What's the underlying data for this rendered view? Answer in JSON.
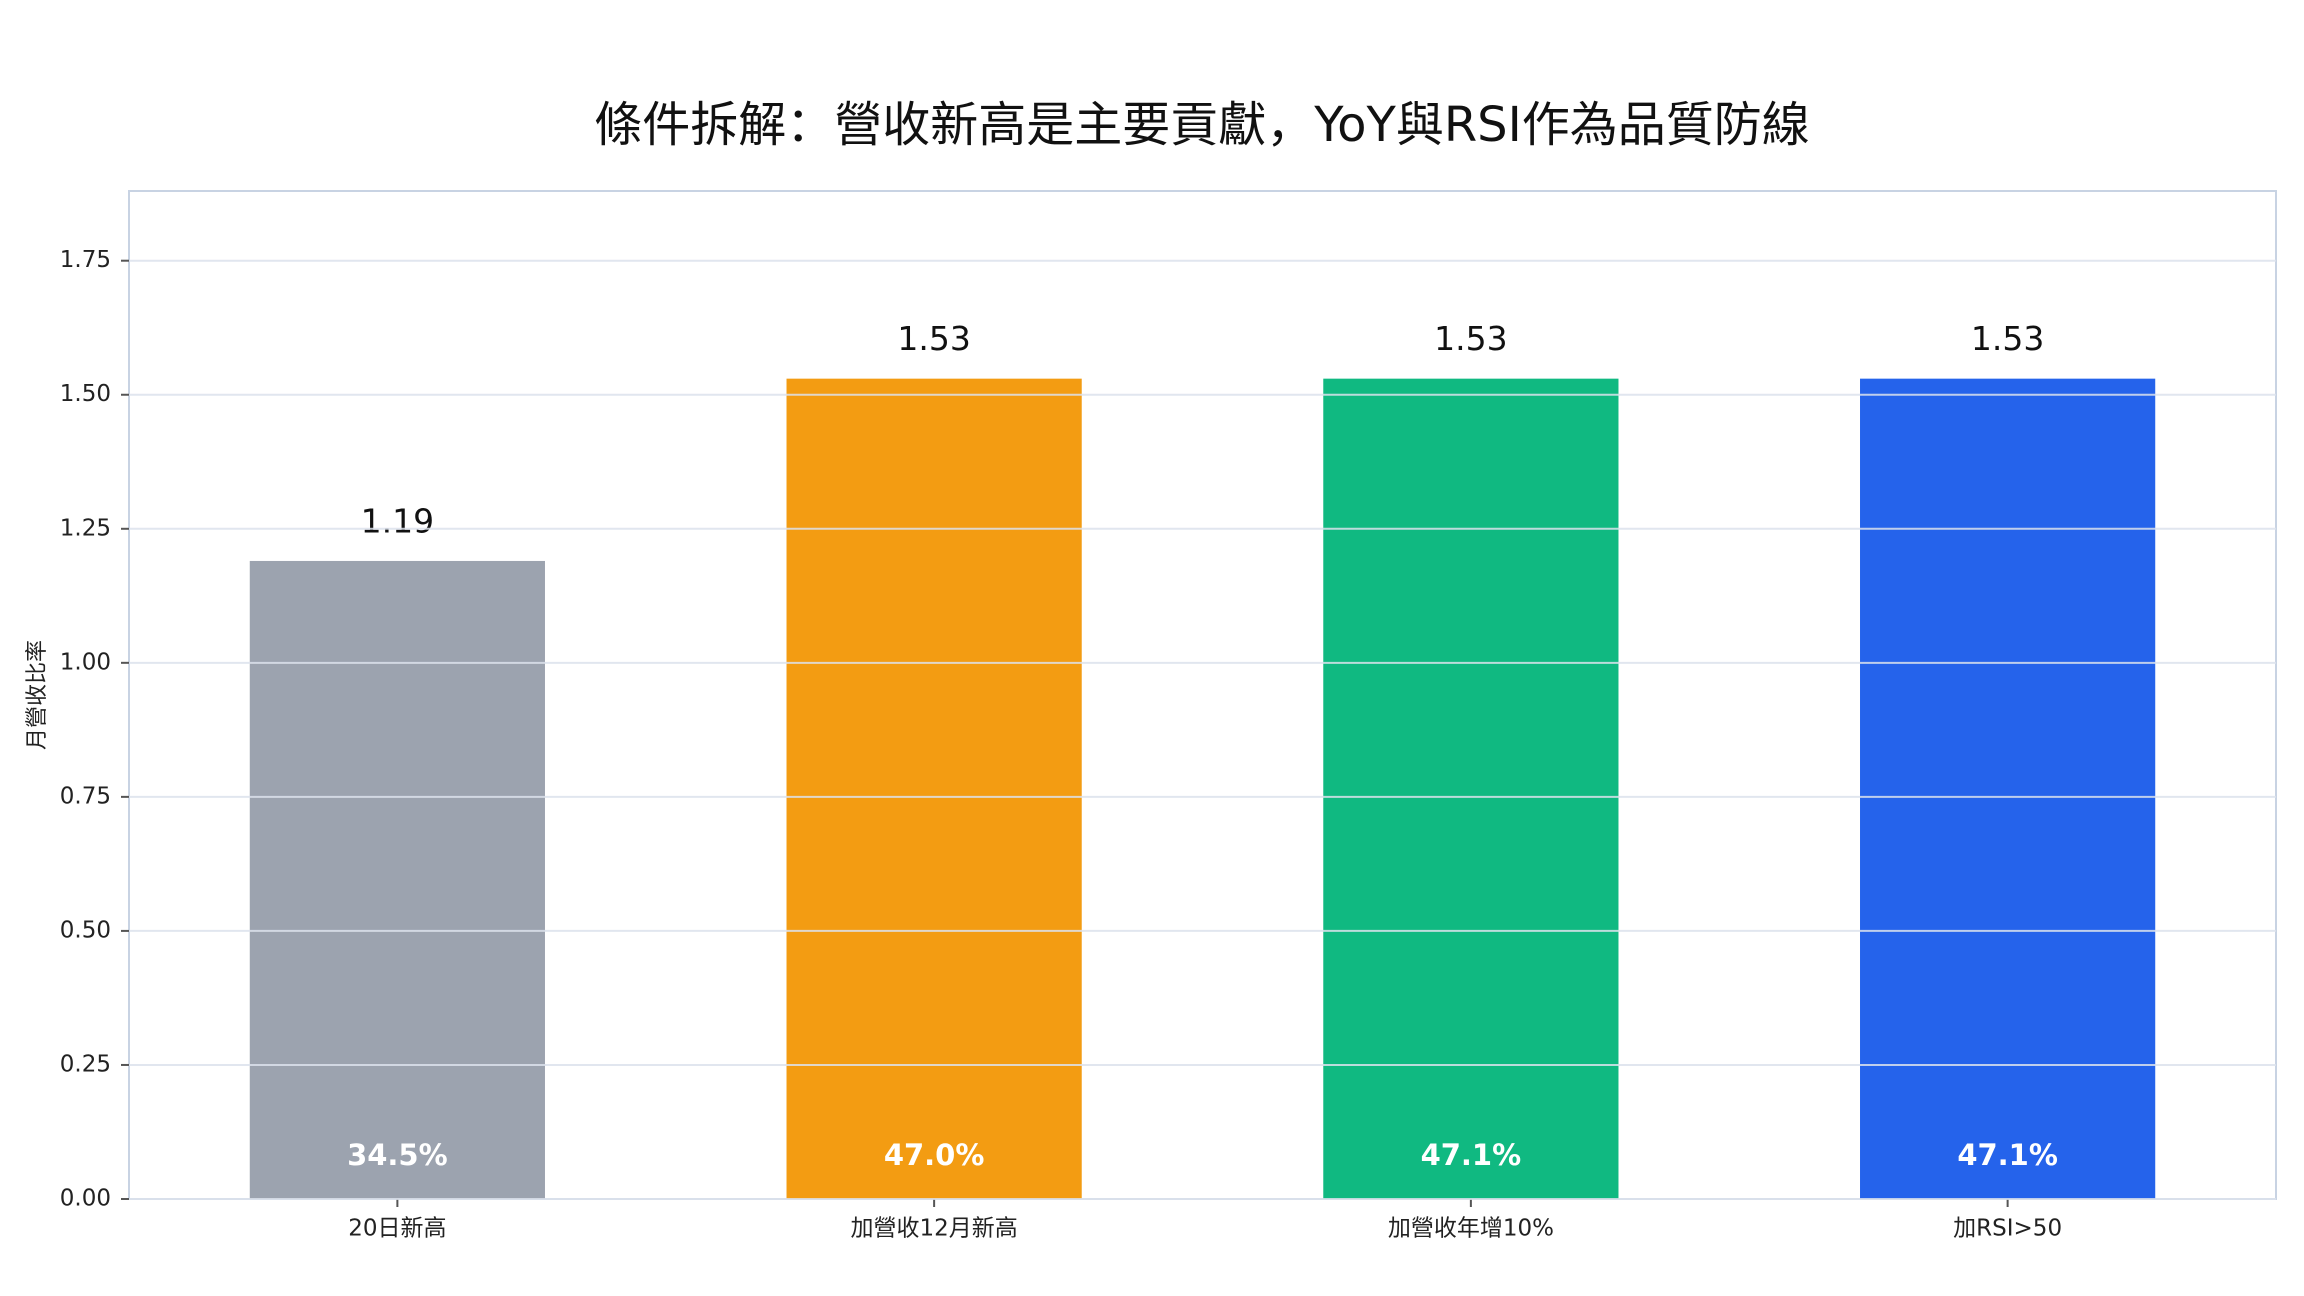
{
  "chart_data": {
    "type": "bar",
    "title": "條件拆解：營收新高是主要貢獻，YoY與RSI作為品質防線",
    "y_label": "月營收比率",
    "categories": [
      "20日新高",
      "加營收12月新高",
      "加營收年增10%",
      "加RSI>50"
    ],
    "values": [
      1.19,
      1.53,
      1.53,
      1.53
    ],
    "colors": [
      "#9ca3af",
      "#f39c12",
      "#10b981",
      "#2563eb"
    ],
    "bar_labels": [
      "34.5%",
      "47.0%",
      "47.1%",
      "47.1%"
    ],
    "ylim": [
      0,
      1.88
    ],
    "yticks": [
      {
        "value": 0,
        "label": "0.00"
      },
      {
        "value": 0.25,
        "label": "0.25"
      },
      {
        "value": 0.5,
        "label": "0.50"
      },
      {
        "value": 0.75,
        "label": "0.75"
      },
      {
        "value": 1,
        "label": "1.00"
      },
      {
        "value": 1.25,
        "label": "1.25"
      },
      {
        "value": 1.5,
        "label": "1.50"
      },
      {
        "value": 1.75,
        "label": "1.75"
      }
    ],
    "grid": true
  }
}
